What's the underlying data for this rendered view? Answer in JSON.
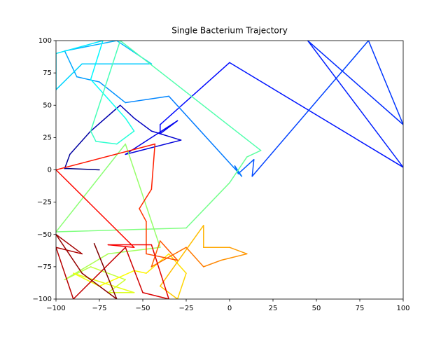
{
  "chart_data": {
    "type": "line",
    "title": "Single Bacterium Trajectory",
    "colormap": "jet",
    "x": [
      -75,
      -93,
      -95,
      -92,
      -80,
      -63,
      -55,
      -45,
      -28,
      -60,
      -30,
      -40,
      -40,
      0,
      100,
      45,
      100,
      80,
      13,
      14,
      5,
      3,
      7,
      -35,
      -60,
      -75,
      -88,
      -95,
      -65,
      -45,
      -85,
      -100,
      -100,
      -73,
      -80,
      -70,
      -60,
      -55,
      -65,
      -77,
      -80,
      -63,
      18,
      10,
      0,
      -25,
      -100,
      -60,
      -40,
      -70,
      -95,
      -80,
      -60,
      -70,
      -55,
      -90,
      -75,
      -55,
      -48,
      -35,
      -25,
      -30,
      -40,
      -15,
      -15,
      0,
      10,
      -5,
      -15,
      -25,
      -45,
      -40,
      -30,
      -48,
      -48,
      -52,
      -45,
      -43,
      -100,
      -55,
      -70,
      -45,
      -35,
      -50,
      -60,
      -90,
      -100,
      -85,
      -100,
      -85,
      -65,
      -78
    ],
    "y": [
      0,
      1,
      1,
      12,
      30,
      50,
      40,
      30,
      23,
      12,
      38,
      28,
      35,
      83,
      2,
      100,
      35,
      100,
      -5,
      8,
      -3,
      3,
      -5,
      57,
      52,
      68,
      72,
      92,
      100,
      82,
      82,
      62,
      90,
      100,
      70,
      55,
      40,
      30,
      20,
      22,
      30,
      100,
      15,
      10,
      -10,
      -45,
      -48,
      20,
      -60,
      -65,
      -85,
      -75,
      -85,
      -95,
      -95,
      -80,
      -90,
      -78,
      -80,
      -65,
      -80,
      -100,
      -90,
      -43,
      -60,
      -60,
      -65,
      -70,
      -75,
      -60,
      -75,
      -55,
      -70,
      -65,
      -40,
      -30,
      -15,
      20,
      0,
      -60,
      -58,
      -58,
      -100,
      -95,
      -60,
      -100,
      -60,
      -65,
      -50,
      -80,
      -100,
      -57
    ],
    "xlim": [
      -100,
      100
    ],
    "ylim": [
      -100,
      100
    ],
    "xticks": [
      {
        "value": -100,
        "label": "−100"
      },
      {
        "value": -75,
        "label": "−75"
      },
      {
        "value": -50,
        "label": "−50"
      },
      {
        "value": -25,
        "label": "−25"
      },
      0,
      25,
      50,
      75,
      100
    ],
    "yticks": [
      {
        "value": -100,
        "label": "−100"
      },
      {
        "value": -75,
        "label": "−75"
      },
      {
        "value": -50,
        "label": "−50"
      },
      {
        "value": -25,
        "label": "−25"
      },
      0,
      25,
      50,
      75,
      100
    ]
  }
}
